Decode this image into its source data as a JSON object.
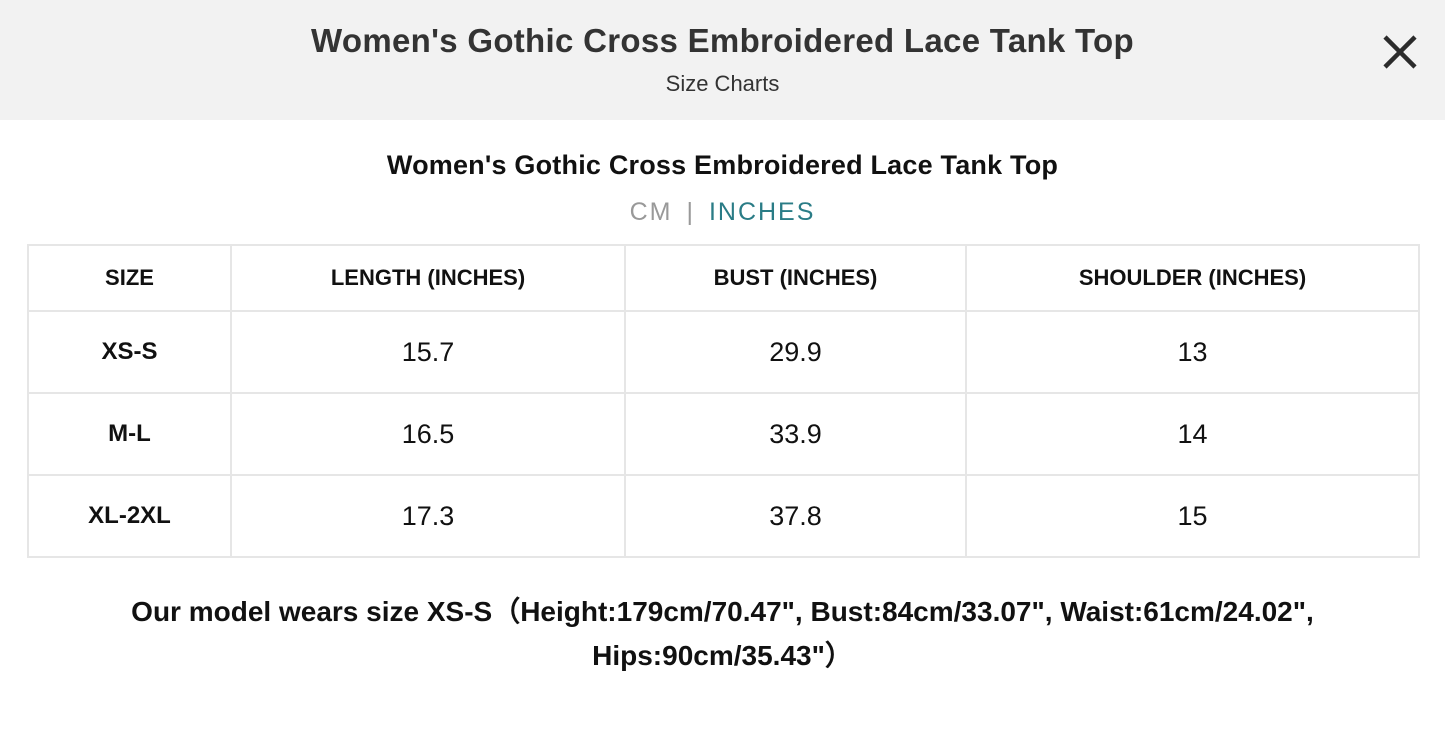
{
  "header": {
    "title": "Women's Gothic Cross Embroidered Lace Tank Top",
    "subtitle": "Size Charts",
    "close_icon": "close-icon"
  },
  "product_title": "Women's Gothic Cross Embroidered Lace Tank Top",
  "units": {
    "cm_label": "CM",
    "separator": "|",
    "inches_label": "INCHES",
    "selected": "INCHES",
    "active_color": "#2a7c86",
    "inactive_color": "#999999"
  },
  "table": {
    "headers": [
      "SIZE",
      "LENGTH (INCHES)",
      "BUST (INCHES)",
      "SHOULDER (INCHES)"
    ],
    "rows": [
      [
        "XS-S",
        "15.7",
        "29.9",
        "13"
      ],
      [
        "M-L",
        "16.5",
        "33.9",
        "14"
      ],
      [
        "XL-2XL",
        "17.3",
        "37.8",
        "15"
      ]
    ]
  },
  "footnote": {
    "line1": "Our model wears size XS-S（Height:179cm/70.47\", Bust:84cm/33.07\", Waist:61cm/24.02\",",
    "line2": "Hips:90cm/35.43\"）"
  }
}
